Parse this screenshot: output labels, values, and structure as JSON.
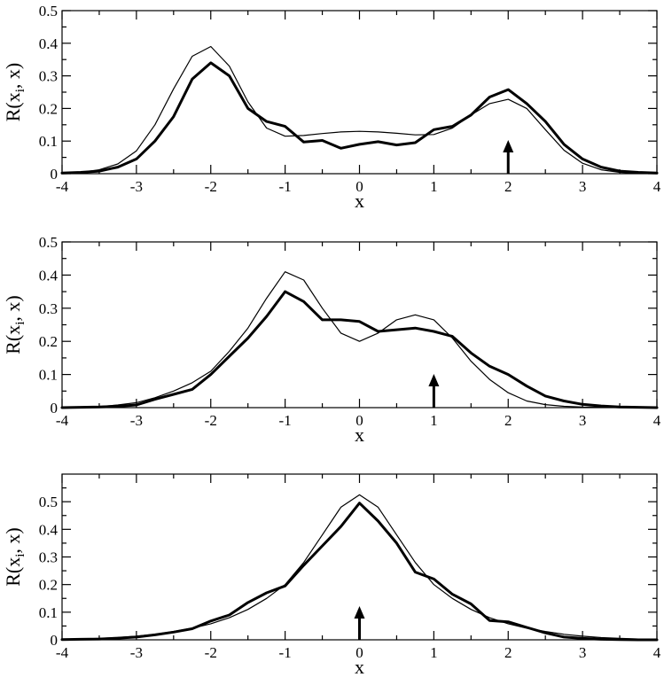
{
  "chart_data": [
    {
      "type": "line",
      "xlabel": "x",
      "ylabel": "R(x_i, x)",
      "ylabel_main": "R(x",
      "ylabel_sub": "i",
      "ylabel_rest": ", x)",
      "xlim": [
        -4,
        4
      ],
      "ylim": [
        0,
        0.5
      ],
      "xticks": [
        -4,
        -3,
        -2,
        -1,
        0,
        1,
        2,
        3,
        4
      ],
      "xtick_labels": [
        "-4",
        "-3",
        "-2",
        "-1",
        "0",
        "1",
        "2",
        "3",
        "4"
      ],
      "yticks": [
        0,
        0.1,
        0.2,
        0.3,
        0.4,
        0.5
      ],
      "ytick_labels": [
        "0",
        "0.1",
        "0.2",
        "0.3",
        "0.4",
        "0.5"
      ],
      "arrow_x": 2,
      "grid": false,
      "series": [
        {
          "style": "thick",
          "x": [
            -4,
            -3.75,
            -3.5,
            -3.25,
            -3,
            -2.75,
            -2.5,
            -2.25,
            -2,
            -1.75,
            -1.5,
            -1.25,
            -1,
            -0.75,
            -0.5,
            -0.25,
            0,
            0.25,
            0.5,
            0.75,
            1,
            1.25,
            1.5,
            1.75,
            2,
            2.25,
            2.5,
            2.75,
            3,
            3.25,
            3.5,
            3.75,
            4
          ],
          "y": [
            0.002,
            0.004,
            0.008,
            0.02,
            0.045,
            0.1,
            0.175,
            0.29,
            0.34,
            0.3,
            0.2,
            0.16,
            0.145,
            0.097,
            0.102,
            0.078,
            0.09,
            0.098,
            0.088,
            0.095,
            0.135,
            0.145,
            0.18,
            0.235,
            0.258,
            0.215,
            0.16,
            0.09,
            0.045,
            0.02,
            0.008,
            0.004,
            0.002
          ]
        },
        {
          "style": "thin",
          "x": [
            -4,
            -3.75,
            -3.5,
            -3.25,
            -3,
            -2.75,
            -2.5,
            -2.25,
            -2,
            -1.75,
            -1.5,
            -1.25,
            -1,
            -0.75,
            -0.5,
            -0.25,
            0,
            0.25,
            0.5,
            0.75,
            1,
            1.25,
            1.5,
            1.75,
            2,
            2.25,
            2.5,
            2.75,
            3,
            3.25,
            3.5,
            3.75,
            4
          ],
          "y": [
            0.001,
            0.004,
            0.012,
            0.03,
            0.07,
            0.15,
            0.26,
            0.36,
            0.39,
            0.33,
            0.22,
            0.14,
            0.115,
            0.117,
            0.123,
            0.128,
            0.13,
            0.128,
            0.124,
            0.119,
            0.12,
            0.14,
            0.18,
            0.215,
            0.228,
            0.2,
            0.135,
            0.072,
            0.032,
            0.012,
            0.004,
            0.001,
            0.0002
          ]
        }
      ]
    },
    {
      "type": "line",
      "xlabel": "x",
      "ylabel": "R(x_i, x)",
      "ylabel_main": "R(x",
      "ylabel_sub": "i",
      "ylabel_rest": ", x)",
      "xlim": [
        -4,
        4
      ],
      "ylim": [
        0,
        0.5
      ],
      "xticks": [
        -4,
        -3,
        -2,
        -1,
        0,
        1,
        2,
        3,
        4
      ],
      "xtick_labels": [
        "-4",
        "-3",
        "-2",
        "-1",
        "0",
        "1",
        "2",
        "3",
        "4"
      ],
      "yticks": [
        0,
        0.1,
        0.2,
        0.3,
        0.4,
        0.5
      ],
      "ytick_labels": [
        "0",
        "0.1",
        "0.2",
        "0.3",
        "0.4",
        "0.5"
      ],
      "arrow_x": 1,
      "grid": false,
      "series": [
        {
          "style": "thick",
          "x": [
            -4,
            -3.75,
            -3.5,
            -3.25,
            -3,
            -2.75,
            -2.5,
            -2.25,
            -2,
            -1.75,
            -1.5,
            -1.25,
            -1,
            -0.75,
            -0.5,
            -0.25,
            0,
            0.25,
            0.5,
            0.75,
            1,
            1.25,
            1.5,
            1.75,
            2,
            2.25,
            2.5,
            2.75,
            3,
            3.25,
            3.5,
            3.75,
            4
          ],
          "y": [
            0,
            0.001,
            0.002,
            0.004,
            0.008,
            0.025,
            0.04,
            0.055,
            0.1,
            0.155,
            0.21,
            0.275,
            0.35,
            0.32,
            0.265,
            0.265,
            0.26,
            0.23,
            0.235,
            0.24,
            0.23,
            0.215,
            0.165,
            0.125,
            0.1,
            0.065,
            0.035,
            0.02,
            0.01,
            0.005,
            0.002,
            0.001,
            0
          ]
        },
        {
          "style": "thin",
          "x": [
            -4,
            -3.75,
            -3.5,
            -3.25,
            -3,
            -2.75,
            -2.5,
            -2.25,
            -2,
            -1.75,
            -1.5,
            -1.25,
            -1,
            -0.75,
            -0.5,
            -0.25,
            0,
            0.25,
            0.5,
            0.75,
            1,
            1.25,
            1.5,
            1.75,
            2,
            2.25,
            2.5,
            2.75,
            3,
            3.25,
            3.5,
            3.75,
            4
          ],
          "y": [
            0,
            0.001,
            0.003,
            0.008,
            0.015,
            0.03,
            0.05,
            0.075,
            0.11,
            0.17,
            0.24,
            0.33,
            0.41,
            0.385,
            0.3,
            0.225,
            0.2,
            0.225,
            0.265,
            0.28,
            0.265,
            0.21,
            0.14,
            0.085,
            0.045,
            0.02,
            0.009,
            0.004,
            0.002,
            0.001,
            0,
            0,
            0
          ]
        }
      ]
    },
    {
      "type": "line",
      "xlabel": "x",
      "ylabel": "R(x_i, x)",
      "ylabel_main": "R(x",
      "ylabel_sub": "i",
      "ylabel_rest": ", x)",
      "xlim": [
        -4,
        4
      ],
      "ylim": [
        0,
        0.6
      ],
      "xticks": [
        -4,
        -3,
        -2,
        -1,
        0,
        1,
        2,
        3,
        4
      ],
      "xtick_labels": [
        "-4",
        "-3",
        "-2",
        "-1",
        "0",
        "1",
        "2",
        "3",
        "4"
      ],
      "yticks": [
        0,
        0.1,
        0.2,
        0.3,
        0.4,
        0.5
      ],
      "ytick_labels": [
        "0",
        "0.1",
        "0.2",
        "0.3",
        "0.4",
        "0.5"
      ],
      "arrow_x": 0,
      "grid": false,
      "series": [
        {
          "style": "thick",
          "x": [
            -4,
            -3.75,
            -3.5,
            -3.25,
            -3,
            -2.75,
            -2.5,
            -2.25,
            -2,
            -1.75,
            -1.5,
            -1.25,
            -1,
            -0.75,
            -0.5,
            -0.25,
            0,
            0.25,
            0.5,
            0.75,
            1,
            1.25,
            1.5,
            1.75,
            2,
            2.25,
            2.5,
            2.75,
            3,
            3.25,
            3.5,
            3.75,
            4
          ],
          "y": [
            0.001,
            0.002,
            0.003,
            0.006,
            0.01,
            0.018,
            0.028,
            0.04,
            0.068,
            0.09,
            0.135,
            0.17,
            0.195,
            0.27,
            0.34,
            0.41,
            0.495,
            0.43,
            0.35,
            0.245,
            0.22,
            0.165,
            0.13,
            0.07,
            0.065,
            0.045,
            0.025,
            0.01,
            0.005,
            0.002,
            0.001,
            0,
            0
          ]
        },
        {
          "style": "thin",
          "x": [
            -4,
            -3.75,
            -3.5,
            -3.25,
            -3,
            -2.75,
            -2.5,
            -2.25,
            -2,
            -1.75,
            -1.5,
            -1.25,
            -1,
            -0.75,
            -0.5,
            -0.25,
            0,
            0.25,
            0.5,
            0.75,
            1,
            1.25,
            1.5,
            1.75,
            2,
            2.25,
            2.5,
            2.75,
            3,
            3.25,
            3.5,
            3.75,
            4
          ],
          "y": [
            0.002,
            0.003,
            0.005,
            0.008,
            0.013,
            0.02,
            0.03,
            0.042,
            0.058,
            0.08,
            0.11,
            0.15,
            0.2,
            0.28,
            0.38,
            0.48,
            0.525,
            0.48,
            0.38,
            0.28,
            0.2,
            0.15,
            0.11,
            0.08,
            0.058,
            0.042,
            0.03,
            0.02,
            0.013,
            0.008,
            0.005,
            0.003,
            0.002
          ]
        }
      ]
    }
  ]
}
